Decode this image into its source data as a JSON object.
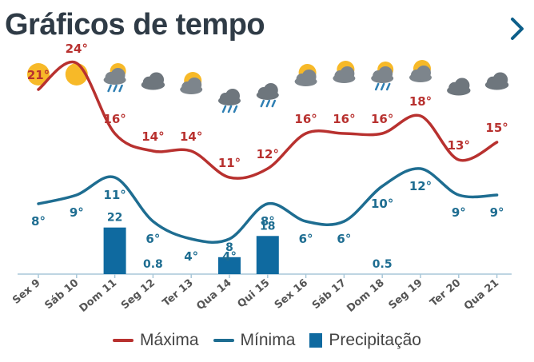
{
  "header": {
    "title": "Gráficos de tempo"
  },
  "colors": {
    "max": "#b8312f",
    "min": "#1e6d91",
    "precip": "#0f6aa0",
    "axis": "#a9c7d8"
  },
  "legend": {
    "max_label": "Máxima",
    "min_label": "Mínima",
    "precip_label": "Precipitação"
  },
  "chart_data": {
    "type": "line",
    "categories": [
      "Sex 9",
      "Sáb 10",
      "Dom 11",
      "Seg 12",
      "Ter 13",
      "Qua 14",
      "Qui 15",
      "Sex 16",
      "Sáb 17",
      "Dom 18",
      "Seg 19",
      "Ter 20",
      "Qua 21"
    ],
    "icons": [
      "sun-icon",
      "sun-icon",
      "sun-cloud-rain-icon",
      "cloud-icon",
      "sun-cloud-icon",
      "cloud-rain-icon",
      "cloud-rain-icon",
      "sun-cloud-icon",
      "sun-cloud-icon",
      "sun-cloud-rain-icon",
      "sun-cloud-icon",
      "cloud-icon",
      "cloud-icon"
    ],
    "series": [
      {
        "name": "Máxima",
        "values": [
          21,
          24,
          16,
          14,
          14,
          11,
          12,
          16,
          16,
          16,
          18,
          13,
          15
        ],
        "labels": [
          "21°",
          "24°",
          "16°",
          "14°",
          "14°",
          "11°",
          "12°",
          "16°",
          "16°",
          "16°",
          "18°",
          "13°",
          "15°"
        ]
      },
      {
        "name": "Mínima",
        "values": [
          8,
          9,
          11,
          6,
          4,
          4,
          8,
          6,
          6,
          10,
          12,
          9,
          9
        ],
        "labels": [
          "8°",
          "9°",
          "11°",
          "6°",
          "4°",
          "4°",
          "8°",
          "6°",
          "6°",
          "10°",
          "12°",
          "9°",
          "9°"
        ]
      },
      {
        "name": "Precipitação",
        "type": "bar",
        "values": [
          0,
          0,
          22,
          0.8,
          0,
          8,
          18,
          0,
          0,
          0.5,
          0,
          0,
          0
        ],
        "labels": [
          "",
          "",
          "22",
          "0.8",
          "",
          "8",
          "18",
          "",
          "",
          "0.5",
          "",
          "",
          ""
        ]
      }
    ]
  }
}
